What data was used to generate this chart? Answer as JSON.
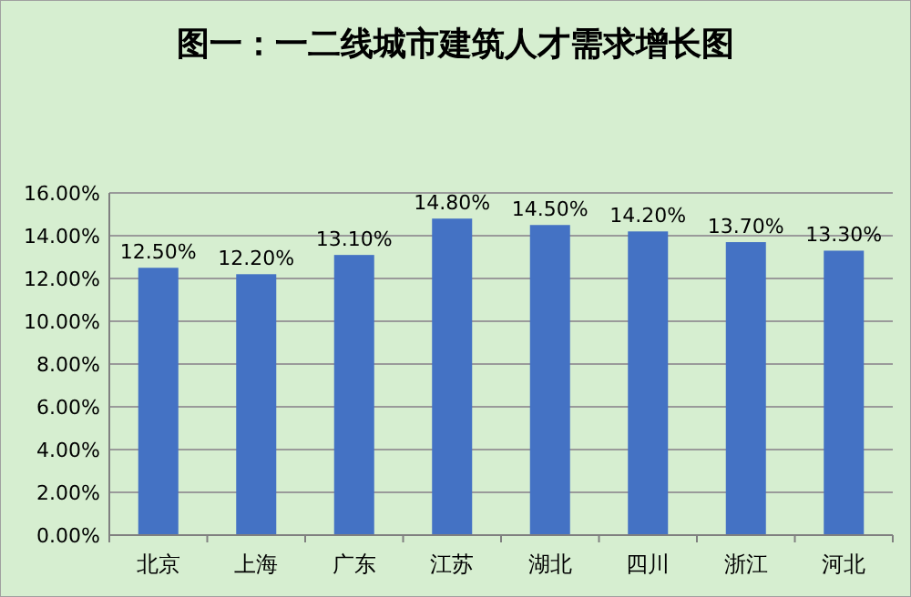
{
  "chart_data": {
    "type": "bar",
    "title": "图一：一二线城市建筑人才需求增长图",
    "categories": [
      "北京",
      "上海",
      "广东",
      "江苏",
      "湖北",
      "四川",
      "浙江",
      "河北"
    ],
    "values": [
      12.5,
      12.2,
      13.1,
      14.8,
      14.5,
      14.2,
      13.7,
      13.3
    ],
    "value_labels": [
      "12.50%",
      "12.20%",
      "13.10%",
      "14.80%",
      "14.50%",
      "14.20%",
      "13.70%",
      "13.30%"
    ],
    "color": "#4472c4",
    "ylim": [
      0,
      16
    ],
    "yticks": [
      {
        "value": 0,
        "label": "0.00%"
      },
      {
        "value": 2,
        "label": "2.00%"
      },
      {
        "value": 4,
        "label": "4.00%"
      },
      {
        "value": 6,
        "label": "6.00%"
      },
      {
        "value": 8,
        "label": "8.00%"
      },
      {
        "value": 10,
        "label": "10.00%"
      },
      {
        "value": 12,
        "label": "12.00%"
      },
      {
        "value": 14,
        "label": "14.00%"
      },
      {
        "value": 16,
        "label": "16.00%"
      }
    ],
    "grid": "y"
  }
}
